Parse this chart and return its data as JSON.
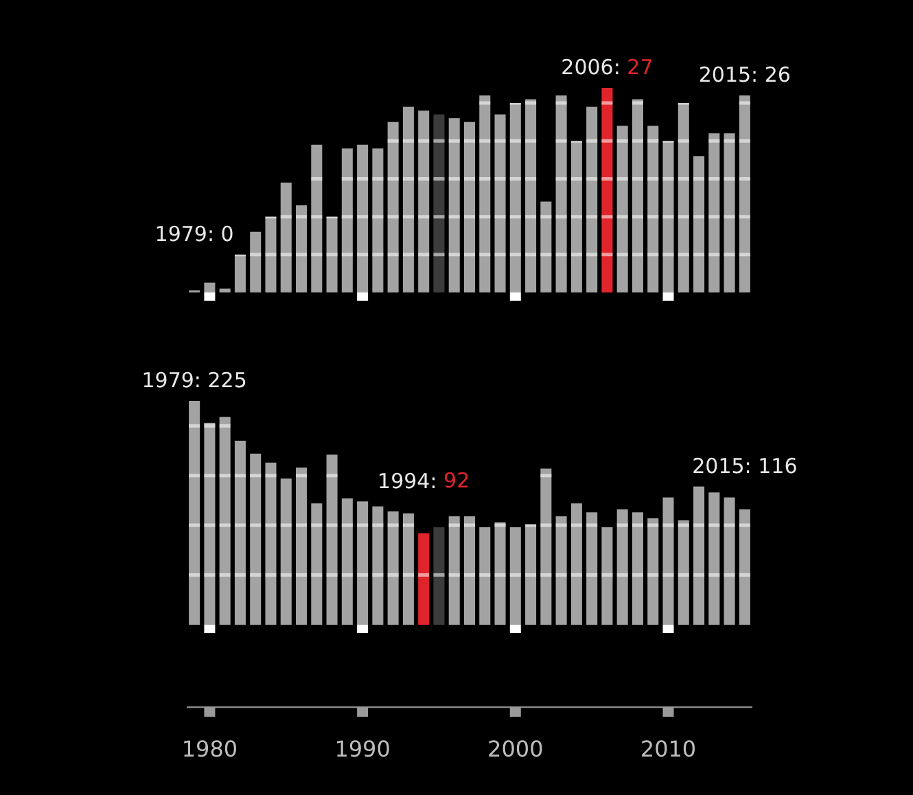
{
  "chart_data": [
    {
      "type": "bar",
      "x": [
        1979,
        1980,
        1981,
        1982,
        1983,
        1984,
        1985,
        1986,
        1987,
        1988,
        1989,
        1990,
        1991,
        1992,
        1993,
        1994,
        1995,
        1996,
        1997,
        1998,
        1999,
        2000,
        2001,
        2002,
        2003,
        2004,
        2005,
        2006,
        2007,
        2008,
        2009,
        2010,
        2011,
        2012,
        2013,
        2014,
        2015
      ],
      "values": [
        0,
        1.3,
        0.5,
        5,
        8,
        10,
        14.5,
        11.5,
        19.5,
        10,
        19,
        19.5,
        19,
        22.5,
        24.5,
        24,
        23.5,
        23,
        22.5,
        26,
        23.5,
        25,
        25.5,
        12,
        26,
        20,
        24.5,
        27,
        22,
        25.5,
        22,
        20,
        25,
        18,
        21,
        21,
        26
      ],
      "colors": [
        "#a3a3a3",
        "#a3a3a3",
        "#a3a3a3",
        "#a3a3a3",
        "#a3a3a3",
        "#a3a3a3",
        "#a3a3a3",
        "#a3a3a3",
        "#a3a3a3",
        "#a3a3a3",
        "#a3a3a3",
        "#a3a3a3",
        "#a3a3a3",
        "#a3a3a3",
        "#a3a3a3",
        "#a3a3a3",
        "#3c3c3c",
        "#a3a3a3",
        "#a3a3a3",
        "#a3a3a3",
        "#a3a3a3",
        "#a3a3a3",
        "#a3a3a3",
        "#a3a3a3",
        "#a3a3a3",
        "#a3a3a3",
        "#a3a3a3",
        "#e0242b",
        "#a3a3a3",
        "#a3a3a3",
        "#a3a3a3",
        "#a3a3a3",
        "#a3a3a3",
        "#a3a3a3",
        "#a3a3a3",
        "#a3a3a3",
        "#a3a3a3"
      ],
      "value_labels": [
        "1979: 0",
        null,
        null,
        null,
        null,
        null,
        null,
        null,
        null,
        null,
        null,
        null,
        null,
        null,
        null,
        null,
        null,
        null,
        null,
        null,
        null,
        null,
        null,
        null,
        null,
        null,
        null,
        "2006: 27",
        null,
        null,
        null,
        null,
        null,
        null,
        null,
        null,
        "2015: 26"
      ],
      "xlim": [
        1978.5,
        2015.5
      ],
      "xticks": [
        {
          "value": 1980,
          "label": null
        },
        {
          "value": 1990,
          "label": null
        },
        {
          "value": 2000,
          "label": null
        },
        {
          "value": 2010,
          "label": null
        }
      ],
      "ylim": [
        0,
        27
      ],
      "yticks": [
        {
          "value": 5,
          "label": null
        },
        {
          "value": 10,
          "label": null
        },
        {
          "value": 15,
          "label": null
        },
        {
          "value": 20,
          "label": null
        },
        {
          "value": 25,
          "label": null
        }
      ],
      "grid": "y",
      "tick_labels": false
    },
    {
      "type": "bar",
      "x": [
        1979,
        1980,
        1981,
        1982,
        1983,
        1984,
        1985,
        1986,
        1987,
        1988,
        1989,
        1990,
        1991,
        1992,
        1993,
        1994,
        1995,
        1996,
        1997,
        1998,
        1999,
        2000,
        2001,
        2002,
        2003,
        2004,
        2005,
        2006,
        2007,
        2008,
        2009,
        2010,
        2011,
        2012,
        2013,
        2014,
        2015
      ],
      "values": [
        225,
        203,
        209,
        185,
        172,
        163,
        147,
        158,
        122,
        171,
        127,
        124,
        119,
        114,
        112,
        92,
        98,
        109,
        109,
        98,
        103,
        98,
        101,
        157,
        109,
        122,
        113,
        98,
        116,
        113,
        107,
        128,
        105,
        139,
        133,
        128,
        116
      ],
      "colors": [
        "#a3a3a3",
        "#a3a3a3",
        "#a3a3a3",
        "#a3a3a3",
        "#a3a3a3",
        "#a3a3a3",
        "#a3a3a3",
        "#a3a3a3",
        "#a3a3a3",
        "#a3a3a3",
        "#a3a3a3",
        "#a3a3a3",
        "#a3a3a3",
        "#a3a3a3",
        "#a3a3a3",
        "#e0242b",
        "#3c3c3c",
        "#a3a3a3",
        "#a3a3a3",
        "#a3a3a3",
        "#a3a3a3",
        "#a3a3a3",
        "#a3a3a3",
        "#a3a3a3",
        "#a3a3a3",
        "#a3a3a3",
        "#a3a3a3",
        "#a3a3a3",
        "#a3a3a3",
        "#a3a3a3",
        "#a3a3a3",
        "#a3a3a3",
        "#a3a3a3",
        "#a3a3a3",
        "#a3a3a3",
        "#a3a3a3",
        "#a3a3a3"
      ],
      "value_labels": [
        "1979: 225",
        null,
        null,
        null,
        null,
        null,
        null,
        null,
        null,
        null,
        null,
        null,
        null,
        null,
        null,
        "1994: 92",
        null,
        null,
        null,
        null,
        null,
        null,
        null,
        null,
        null,
        null,
        null,
        null,
        null,
        null,
        null,
        null,
        null,
        null,
        null,
        null,
        "2015: 116"
      ],
      "xlim": [
        1978.5,
        2015.5
      ],
      "xticks": [
        1980,
        1990,
        2000,
        2010
      ],
      "ylim": [
        0,
        225
      ],
      "yticks": [
        {
          "value": 50,
          "label": null
        },
        {
          "value": 100,
          "label": null
        },
        {
          "value": 150,
          "label": null
        },
        {
          "value": 200,
          "label": null
        }
      ],
      "grid": "y",
      "tick_labels": "x"
    }
  ]
}
